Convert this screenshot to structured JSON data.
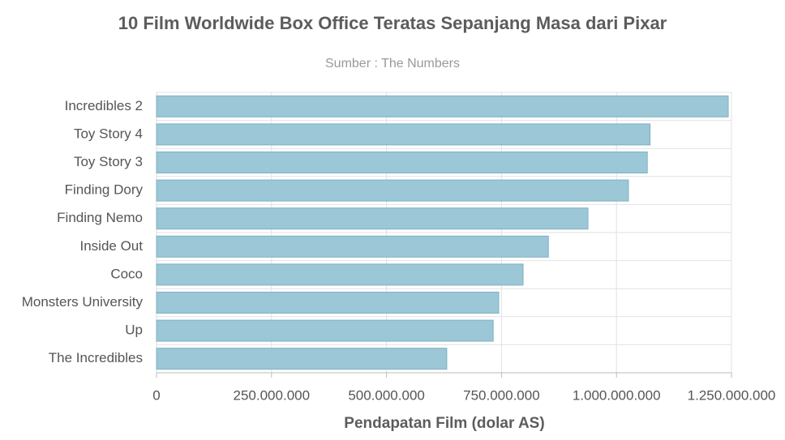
{
  "chart_data": {
    "type": "barh",
    "title": "10 Film Worldwide Box Office Teratas Sepanjang Masa dari Pixar",
    "subtitle": "Sumber : The Numbers",
    "x_label": "Pendapatan Film (dolar AS)",
    "categories": [
      "Incredibles 2",
      "Toy Story 4",
      "Toy Story 3",
      "Finding Dory",
      "Finding Nemo",
      "Inside Out",
      "Coco",
      "Monsters University",
      "Up",
      "The Incredibles"
    ],
    "values": [
      1243000000,
      1073000000,
      1067000000,
      1026000000,
      938000000,
      852000000,
      797000000,
      744000000,
      732000000,
      631000000
    ],
    "color": "#96c4d4",
    "xlim": [
      0,
      1250000000
    ],
    "xticks": [
      0,
      {
        "value": 250000000,
        "label": "250.000.000"
      },
      {
        "value": 500000000,
        "label": "500.000.000"
      },
      {
        "value": 750000000,
        "label": "750.000.000"
      },
      {
        "value": 1000000000,
        "label": "1.000.000.000"
      },
      {
        "value": 1250000000,
        "label": "1.250.000.000"
      }
    ],
    "grid": true
  }
}
